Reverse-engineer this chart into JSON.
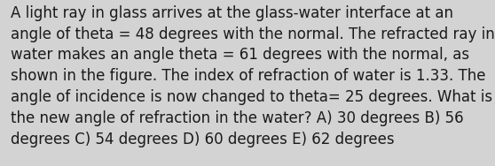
{
  "lines": [
    "A light ray in glass arrives at the glass-water interface at an",
    "angle of theta = 48 degrees with the normal. The refracted ray in",
    "water makes an angle theta = 61 degrees with the normal, as",
    "shown in the figure. The index of refraction of water is 1.33. The",
    "angle of incidence is now changed to theta= 25 degrees. What is",
    "the new angle of refraction in the water? A) 30 degrees B) 56",
    "degrees C) 54 degrees D) 60 degrees E) 62 degrees"
  ],
  "background_color": "#d3d3d3",
  "text_color": "#1a1a1a",
  "font_size": 12.0,
  "fig_width": 5.58,
  "fig_height": 1.88,
  "dpi": 100
}
